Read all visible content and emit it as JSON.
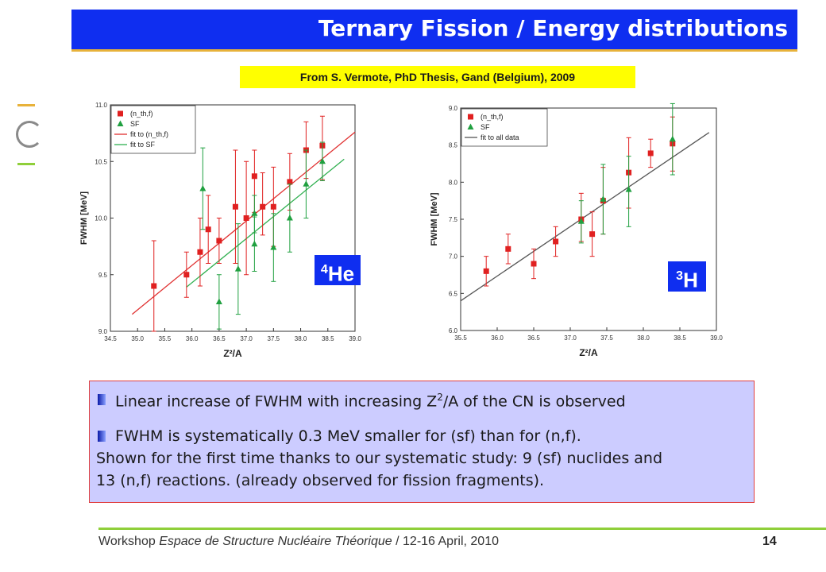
{
  "slide": {
    "title": "Ternary Fission / Energy distributions",
    "source": "From S. Vermote, PhD Thesis, Gand (Belgium), 2009",
    "label_he": {
      "mass": "4",
      "element": "He"
    },
    "label_h": {
      "mass": "3",
      "element": "H"
    },
    "bullets": {
      "b1_pre": "Linear increase of FWHM with increasing Z",
      "b1_sup": "2",
      "b1_post": "/A of the CN is observed",
      "b2": "FWHM is systematically 0.3 MeV smaller for (sf) than for (n,f).",
      "b3": "Shown for the first time thanks to our systematic study: 9 (sf) nuclides and",
      "b4": "13 (n,f) reactions. (already observed for fission fragments)."
    },
    "footer": {
      "pre": "Workshop ",
      "italic": "Espace de Structure Nucléaire Théorique",
      "post": " / 12-16 April, 2010",
      "page": "14"
    },
    "colors": {
      "title_bg": "#0f2ef0",
      "accent_orange": "#e8b23a",
      "accent_green": "#8fcf3a",
      "nth_f": "#e02020",
      "sf": "#20a040",
      "fit_all": "#555555"
    }
  },
  "chart_data": [
    {
      "type": "scatter",
      "xlabel": "Z²/A",
      "ylabel": "FWHM [MeV]",
      "xlim": [
        34.5,
        39.0
      ],
      "ylim": [
        9.0,
        11.0
      ],
      "xticks": [
        "34.5",
        "35.0",
        "35.5",
        "36.0",
        "36.5",
        "37.0",
        "37.5",
        "38.0",
        "38.5",
        "39.0"
      ],
      "yticks": [
        "9.0",
        "9.5",
        "10.0",
        "10.5",
        "11.0"
      ],
      "legend": {
        "placement": "top-left",
        "entries": [
          {
            "name": "(n_th,f)",
            "marker": "square"
          },
          {
            "name": "SF",
            "marker": "triangle"
          },
          {
            "name": "fit to (n_th,f)",
            "marker": "line"
          },
          {
            "name": "fit to SF",
            "marker": "line"
          }
        ]
      },
      "series": [
        {
          "name": "(n_th,f)",
          "marker": "square",
          "color": "#e02020",
          "points": [
            {
              "x": 35.3,
              "y": 9.4,
              "lo": 9.0,
              "hi": 9.8
            },
            {
              "x": 35.9,
              "y": 9.5,
              "lo": 9.3,
              "hi": 9.7
            },
            {
              "x": 36.15,
              "y": 9.7,
              "lo": 9.4,
              "hi": 10.0
            },
            {
              "x": 36.3,
              "y": 9.9,
              "lo": 9.6,
              "hi": 10.2
            },
            {
              "x": 36.5,
              "y": 9.8,
              "lo": 9.6,
              "hi": 10.0
            },
            {
              "x": 36.8,
              "y": 10.1,
              "lo": 9.6,
              "hi": 10.6
            },
            {
              "x": 37.0,
              "y": 10.0,
              "lo": 9.5,
              "hi": 10.5
            },
            {
              "x": 37.15,
              "y": 10.37,
              "lo": 10.05,
              "hi": 10.6
            },
            {
              "x": 37.3,
              "y": 10.1,
              "lo": 9.85,
              "hi": 10.4
            },
            {
              "x": 37.5,
              "y": 10.1,
              "lo": 9.75,
              "hi": 10.45
            },
            {
              "x": 37.8,
              "y": 10.32,
              "lo": 10.07,
              "hi": 10.57
            },
            {
              "x": 38.1,
              "y": 10.6,
              "lo": 10.35,
              "hi": 10.85
            },
            {
              "x": 38.4,
              "y": 10.64,
              "lo": 10.34,
              "hi": 10.9
            }
          ]
        },
        {
          "name": "SF",
          "marker": "triangle",
          "color": "#20a040",
          "points": [
            {
              "x": 36.2,
              "y": 10.26,
              "lo": 9.9,
              "hi": 10.62
            },
            {
              "x": 36.5,
              "y": 9.26,
              "lo": 9.02,
              "hi": 9.5
            },
            {
              "x": 36.85,
              "y": 9.55,
              "lo": 9.15,
              "hi": 9.95
            },
            {
              "x": 37.15,
              "y": 10.04,
              "lo": 9.87,
              "hi": 10.2
            },
            {
              "x": 37.15,
              "y": 9.77,
              "lo": 9.53,
              "hi": 10.01
            },
            {
              "x": 37.5,
              "y": 9.74,
              "lo": 9.44,
              "hi": 10.04
            },
            {
              "x": 37.8,
              "y": 10.0,
              "lo": 9.7,
              "hi": 10.3
            },
            {
              "x": 38.1,
              "y": 10.3,
              "lo": 10.0,
              "hi": 10.6
            },
            {
              "x": 38.4,
              "y": 10.5,
              "lo": 10.33,
              "hi": 10.67
            }
          ]
        }
      ],
      "fits": [
        {
          "name": "fit to (n_th,f)",
          "color": "#e03030",
          "from": [
            34.9,
            9.15
          ],
          "to": [
            39.0,
            10.76
          ]
        },
        {
          "name": "fit to SF",
          "color": "#30b050",
          "from": [
            35.9,
            9.39
          ],
          "to": [
            38.8,
            10.52
          ]
        }
      ]
    },
    {
      "type": "scatter",
      "xlabel": "Z²/A",
      "ylabel": "FWHM [MeV]",
      "xlim": [
        35.5,
        39.0
      ],
      "ylim": [
        6.0,
        9.0
      ],
      "xticks": [
        "35.5",
        "36.0",
        "36.5",
        "37.0",
        "37.5",
        "38.0",
        "38.5",
        "39.0"
      ],
      "yticks": [
        "6.0",
        "6.5",
        "7.0",
        "7.5",
        "8.0",
        "8.5",
        "9.0"
      ],
      "legend": {
        "placement": "top-left",
        "entries": [
          {
            "name": "(n_th,f)",
            "marker": "square"
          },
          {
            "name": "SF",
            "marker": "triangle"
          },
          {
            "name": "fit to all data",
            "marker": "line"
          }
        ]
      },
      "series": [
        {
          "name": "(n_th,f)",
          "marker": "square",
          "color": "#e02020",
          "points": [
            {
              "x": 35.85,
              "y": 6.8,
              "lo": 6.6,
              "hi": 7.0
            },
            {
              "x": 36.15,
              "y": 7.1,
              "lo": 6.9,
              "hi": 7.3
            },
            {
              "x": 36.5,
              "y": 6.9,
              "lo": 6.7,
              "hi": 7.1
            },
            {
              "x": 36.8,
              "y": 7.2,
              "lo": 7.0,
              "hi": 7.4
            },
            {
              "x": 37.15,
              "y": 7.5,
              "lo": 7.2,
              "hi": 7.85
            },
            {
              "x": 37.3,
              "y": 7.3,
              "lo": 7.0,
              "hi": 7.6
            },
            {
              "x": 37.45,
              "y": 7.75,
              "lo": 7.3,
              "hi": 8.2
            },
            {
              "x": 37.8,
              "y": 8.13,
              "lo": 7.65,
              "hi": 8.6
            },
            {
              "x": 38.1,
              "y": 8.39,
              "lo": 8.2,
              "hi": 8.58
            },
            {
              "x": 38.4,
              "y": 8.52,
              "lo": 8.15,
              "hi": 8.88
            }
          ]
        },
        {
          "name": "SF",
          "marker": "triangle",
          "color": "#20a040",
          "points": [
            {
              "x": 37.15,
              "y": 7.47,
              "lo": 7.18,
              "hi": 7.75
            },
            {
              "x": 37.45,
              "y": 7.77,
              "lo": 7.3,
              "hi": 8.24
            },
            {
              "x": 37.8,
              "y": 7.9,
              "lo": 7.4,
              "hi": 8.35
            },
            {
              "x": 38.4,
              "y": 8.58,
              "lo": 8.1,
              "hi": 9.06
            }
          ]
        }
      ],
      "fits": [
        {
          "name": "fit to all data",
          "color": "#555555",
          "from": [
            35.5,
            6.4
          ],
          "to": [
            38.9,
            8.67
          ]
        }
      ]
    }
  ]
}
